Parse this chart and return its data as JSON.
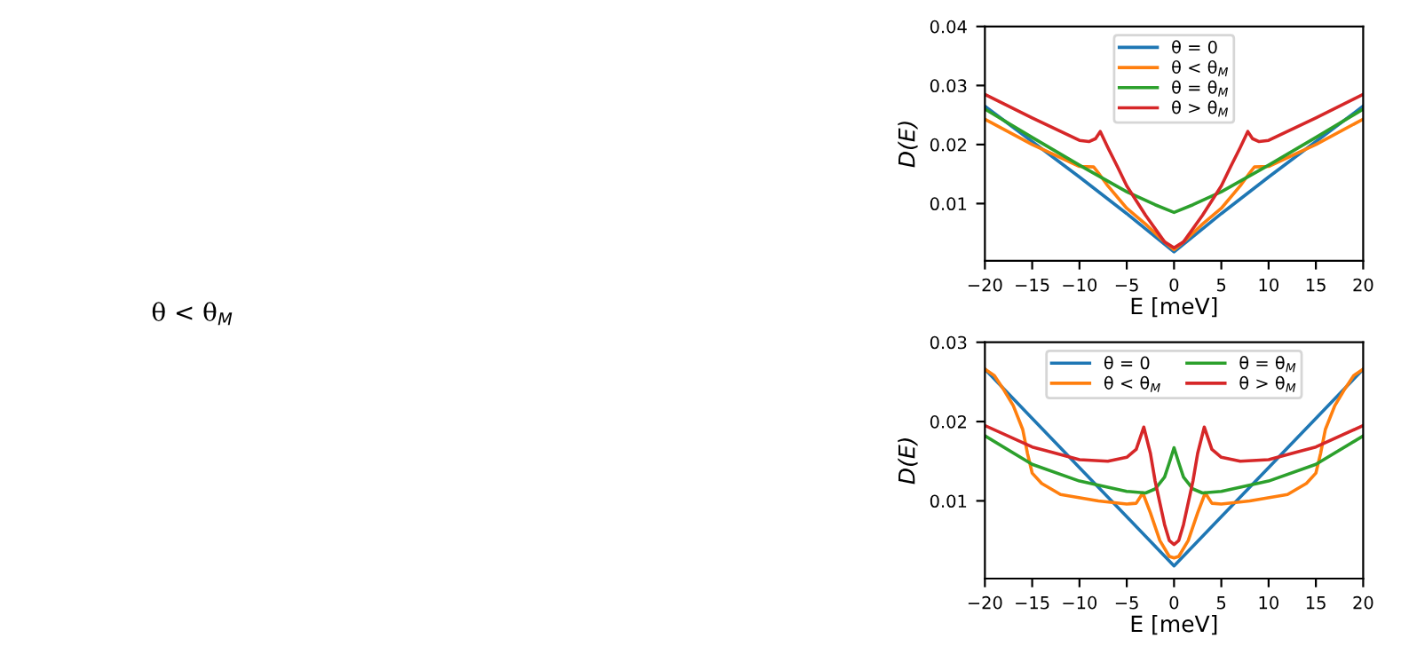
{
  "chart_data": [
    {
      "type": "line",
      "xlabel": "E [meV]",
      "ylabel": "D(E)",
      "xlim": [
        -20,
        20
      ],
      "ylim": [
        0.0003,
        0.04
      ],
      "xticks": [
        {
          "value": -20,
          "label": "−20"
        },
        {
          "value": -15,
          "label": "−15"
        },
        {
          "value": -10,
          "label": "−10"
        },
        {
          "value": -5,
          "label": "−5"
        },
        0,
        5,
        10,
        15,
        20
      ],
      "yticks": [
        {
          "value": 0.01,
          "label": "0.01"
        },
        {
          "value": 0.02,
          "label": "0.02"
        },
        {
          "value": 0.03,
          "label": "0.03"
        },
        {
          "value": 0.04,
          "label": "0.04"
        }
      ],
      "legend": "top",
      "grid": false,
      "annotations": [
        "θ < θ$_{M}$"
      ],
      "series": [
        {
          "name": "θ = 0",
          "color": "#1f77b4",
          "x": [
            -20,
            -15,
            -10,
            -5,
            0,
            5,
            10,
            15,
            20
          ],
          "values": [
            0.0265,
            0.0205,
            0.0145,
            0.0083,
            0.0018,
            0.0083,
            0.0145,
            0.0205,
            0.0265
          ]
        },
        {
          "name": "θ < θ$_{M}$",
          "color": "#ff7f0e",
          "x": [
            -20,
            -15,
            -10,
            -8.5,
            -8,
            -7,
            -5,
            -3,
            -1,
            0,
            1,
            3,
            5,
            7,
            8,
            8.5,
            10,
            15,
            20
          ],
          "values": [
            0.0243,
            0.02,
            0.0163,
            0.0162,
            0.0152,
            0.013,
            0.0092,
            0.0065,
            0.0035,
            0.0022,
            0.0035,
            0.0065,
            0.0092,
            0.013,
            0.0152,
            0.0162,
            0.0163,
            0.02,
            0.0243
          ]
        },
        {
          "name": "θ = θ$_{M}$",
          "color": "#2ca02c",
          "x": [
            -20,
            -15,
            -10,
            -5,
            -2,
            0,
            2,
            5,
            10,
            15,
            20
          ],
          "values": [
            0.026,
            0.0212,
            0.0165,
            0.012,
            0.0098,
            0.0085,
            0.0098,
            0.012,
            0.0165,
            0.0212,
            0.026
          ]
        },
        {
          "name": "θ > θ$_{M}$",
          "color": "#d62728",
          "x": [
            -20,
            -15,
            -10,
            -9,
            -8.3,
            -7.8,
            -7,
            -6,
            -5,
            -3,
            -1,
            0,
            1,
            3,
            5,
            6,
            7,
            7.8,
            8.3,
            9,
            10,
            15,
            20
          ],
          "values": [
            0.0285,
            0.0245,
            0.0207,
            0.0205,
            0.021,
            0.0222,
            0.0195,
            0.0163,
            0.013,
            0.008,
            0.0035,
            0.0025,
            0.0035,
            0.008,
            0.013,
            0.0163,
            0.0195,
            0.0222,
            0.021,
            0.0205,
            0.0207,
            0.0245,
            0.0285
          ]
        }
      ]
    },
    {
      "type": "line",
      "xlabel": "E [meV]",
      "ylabel": "D(E)",
      "xlim": [
        -20,
        20
      ],
      "ylim": [
        0.0002,
        0.03
      ],
      "xticks": [
        {
          "value": -20,
          "label": "−20"
        },
        {
          "value": -15,
          "label": "−15"
        },
        {
          "value": -10,
          "label": "−10"
        },
        {
          "value": -5,
          "label": "−5"
        },
        0,
        5,
        10,
        15,
        20
      ],
      "yticks": [
        {
          "value": 0.01,
          "label": "0.01"
        },
        {
          "value": 0.02,
          "label": "0.02"
        },
        {
          "value": 0.03,
          "label": "0.03"
        }
      ],
      "legend": "top",
      "grid": false,
      "series": [
        {
          "name": "θ = 0",
          "color": "#1f77b4",
          "x": [
            -20,
            -15,
            -10,
            -5,
            0,
            5,
            10,
            15,
            20
          ],
          "values": [
            0.0266,
            0.0204,
            0.0142,
            0.008,
            0.0018,
            0.008,
            0.0142,
            0.0204,
            0.0266
          ]
        },
        {
          "name": "θ < θ$_{M}$",
          "color": "#ff7f0e",
          "x": [
            -20,
            -19,
            -18,
            -17,
            -16,
            -15.5,
            -15,
            -14,
            -12,
            -8,
            -5,
            -4,
            -3.3,
            -2.5,
            -1.5,
            -0.5,
            0,
            0.5,
            1.5,
            2.5,
            3.3,
            4,
            5,
            8,
            12,
            14,
            15,
            15.5,
            16,
            17,
            18,
            19,
            20
          ],
          "values": [
            0.0266,
            0.0258,
            0.024,
            0.022,
            0.019,
            0.016,
            0.0135,
            0.0122,
            0.0108,
            0.01,
            0.0096,
            0.0097,
            0.011,
            0.0085,
            0.005,
            0.003,
            0.0028,
            0.003,
            0.005,
            0.0085,
            0.011,
            0.0097,
            0.0096,
            0.01,
            0.0108,
            0.0122,
            0.0135,
            0.016,
            0.019,
            0.022,
            0.024,
            0.0258,
            0.0266
          ]
        },
        {
          "name": "θ = θ$_{M}$",
          "color": "#2ca02c",
          "x": [
            -20,
            -15,
            -10,
            -5,
            -3,
            -2,
            -1,
            -0.5,
            0,
            0.5,
            1,
            2,
            3,
            5,
            10,
            15,
            20
          ],
          "values": [
            0.0182,
            0.0146,
            0.0125,
            0.0112,
            0.011,
            0.0115,
            0.013,
            0.0148,
            0.0167,
            0.0148,
            0.013,
            0.0115,
            0.011,
            0.0112,
            0.0125,
            0.0146,
            0.0182
          ]
        },
        {
          "name": "θ > θ$_{M}$",
          "color": "#d62728",
          "x": [
            -20,
            -15,
            -10,
            -7,
            -5,
            -4,
            -3.2,
            -2.5,
            -2,
            -1,
            -0.5,
            0,
            0.5,
            1,
            2,
            2.5,
            3.2,
            4,
            5,
            7,
            10,
            15,
            20
          ],
          "values": [
            0.0195,
            0.0168,
            0.0152,
            0.015,
            0.0155,
            0.0165,
            0.0193,
            0.016,
            0.0125,
            0.007,
            0.005,
            0.0045,
            0.005,
            0.007,
            0.0125,
            0.016,
            0.0193,
            0.0165,
            0.0155,
            0.015,
            0.0152,
            0.0168,
            0.0195
          ]
        }
      ]
    }
  ]
}
